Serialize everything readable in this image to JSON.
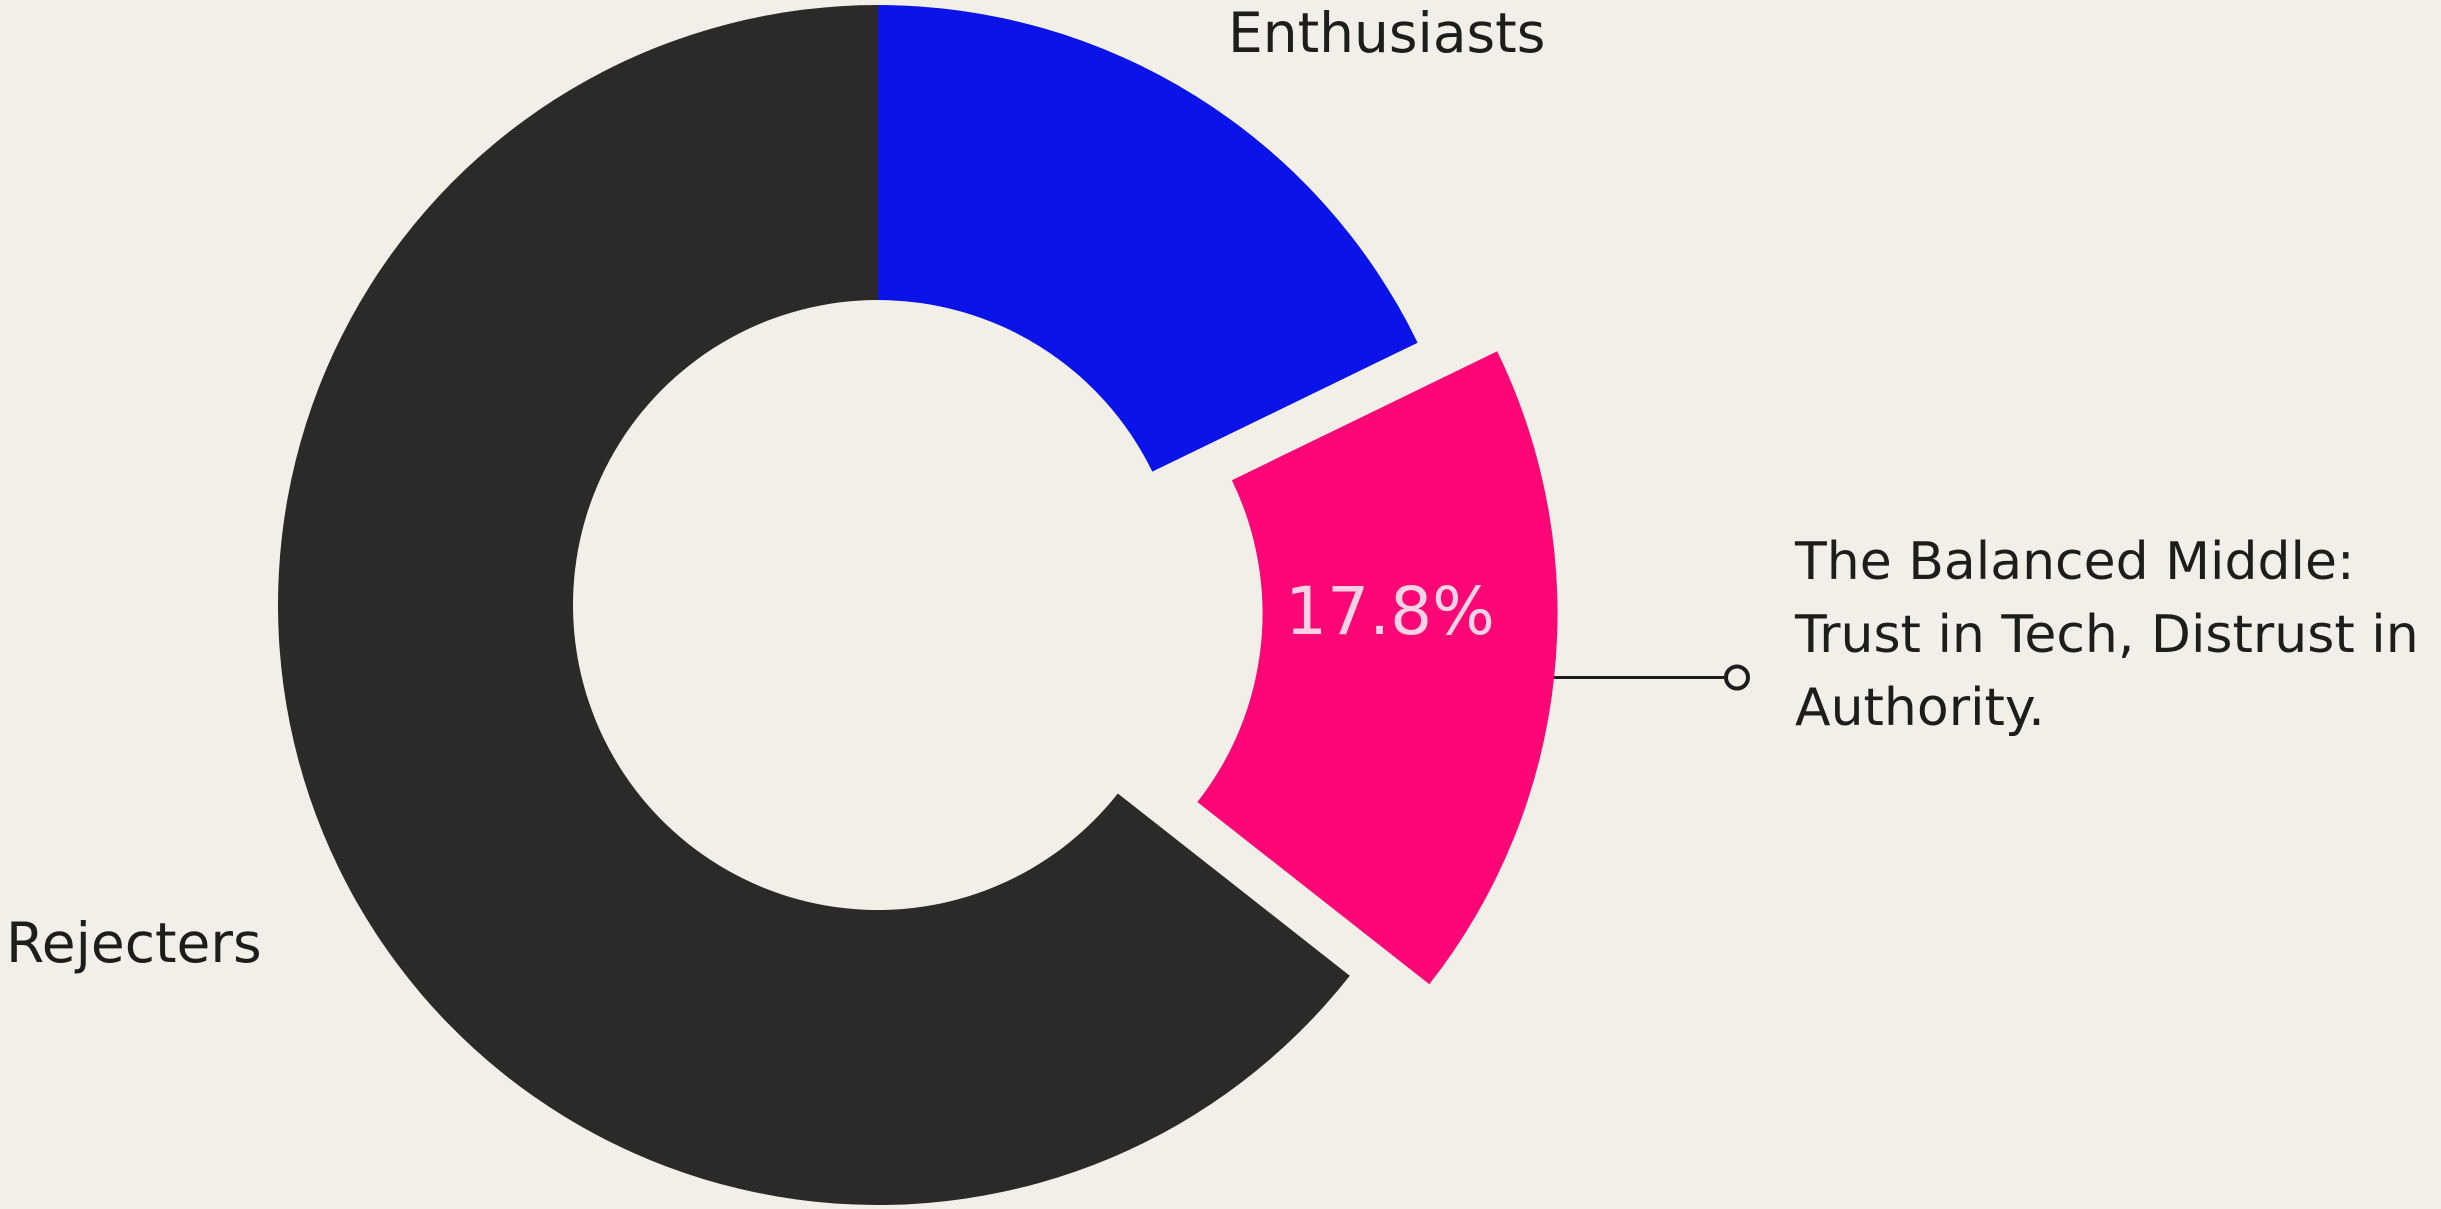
{
  "chart_data": {
    "type": "pie",
    "donut": true,
    "slices": [
      {
        "name": "Enthusiasts",
        "value": 17.8,
        "color": "#0a14e8",
        "exploded": false,
        "data_label": ""
      },
      {
        "name": "The Balanced Middle",
        "value": 17.8,
        "color": "#fc0775",
        "exploded": true,
        "data_label": "17.8%"
      },
      {
        "name": "Rejecters",
        "value": 64.4,
        "color": "#2b2a28",
        "exploded": false,
        "data_label": ""
      }
    ],
    "labels": {
      "enthusiasts": "Enthusiasts",
      "rejecters": "Rejecters"
    },
    "annotation": {
      "target": "The Balanced Middle",
      "lines": [
        "The Balanced Middle:",
        "Trust in Tech, Distrust in",
        "Authority."
      ]
    },
    "colors": {
      "background": "#f1efe8",
      "text": "#1d1d1b",
      "data_label": "#fbd2e4",
      "leader": "#1d1d1b"
    }
  }
}
